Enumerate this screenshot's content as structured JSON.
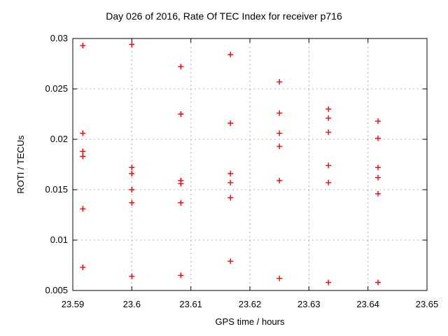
{
  "page": {
    "background": "#ffffff",
    "axis_color": "#000000",
    "grid_color": "#b0b0b0"
  },
  "chart_data": {
    "type": "scatter",
    "title": "Day 026 of 2016, Rate Of TEC Index for receiver p716",
    "xlabel": "GPS time / hours",
    "ylabel": "ROTI / TECUs",
    "xlim": [
      23.59,
      23.65
    ],
    "ylim": [
      0.005,
      0.03
    ],
    "grid": true,
    "legend": "none",
    "marker": {
      "shape": "plus",
      "color": "#ff0000",
      "size": 9
    },
    "xticks": {
      "values": [
        23.59,
        23.6,
        23.61,
        23.62,
        23.63,
        23.64,
        23.65
      ],
      "labels": [
        "23.59",
        "23.6",
        "23.61",
        "23.62",
        "23.63",
        "23.64",
        "23.65"
      ]
    },
    "yticks": {
      "values": [
        0.005,
        0.01,
        0.015,
        0.02,
        0.025,
        0.03
      ],
      "labels": [
        "0.005",
        "0.01",
        "0.015",
        "0.02",
        "0.025",
        "0.03"
      ]
    },
    "series": [
      {
        "name": "ROTI",
        "points": [
          [
            23.5917,
            0.0293
          ],
          [
            23.5917,
            0.0206
          ],
          [
            23.5917,
            0.0188
          ],
          [
            23.5917,
            0.0183
          ],
          [
            23.5917,
            0.0131
          ],
          [
            23.5917,
            0.0073
          ],
          [
            23.6,
            0.0294
          ],
          [
            23.6,
            0.0172
          ],
          [
            23.6,
            0.0166
          ],
          [
            23.6,
            0.015
          ],
          [
            23.6,
            0.0137
          ],
          [
            23.6,
            0.0064
          ],
          [
            23.6083,
            0.0272
          ],
          [
            23.6083,
            0.0225
          ],
          [
            23.6083,
            0.0159
          ],
          [
            23.6083,
            0.0156
          ],
          [
            23.6083,
            0.0137
          ],
          [
            23.6083,
            0.0065
          ],
          [
            23.6167,
            0.0284
          ],
          [
            23.6167,
            0.0216
          ],
          [
            23.6167,
            0.0166
          ],
          [
            23.6167,
            0.0157
          ],
          [
            23.6167,
            0.0142
          ],
          [
            23.6167,
            0.0079
          ],
          [
            23.625,
            0.0257
          ],
          [
            23.625,
            0.0226
          ],
          [
            23.625,
            0.0206
          ],
          [
            23.625,
            0.0193
          ],
          [
            23.625,
            0.0159
          ],
          [
            23.625,
            0.0062
          ],
          [
            23.6333,
            0.023
          ],
          [
            23.6333,
            0.0221
          ],
          [
            23.6333,
            0.0207
          ],
          [
            23.6333,
            0.0174
          ],
          [
            23.6333,
            0.0157
          ],
          [
            23.6333,
            0.0058
          ],
          [
            23.6417,
            0.0218
          ],
          [
            23.6417,
            0.0201
          ],
          [
            23.6417,
            0.0172
          ],
          [
            23.6417,
            0.0162
          ],
          [
            23.6417,
            0.0146
          ],
          [
            23.6417,
            0.0058
          ]
        ]
      }
    ]
  }
}
